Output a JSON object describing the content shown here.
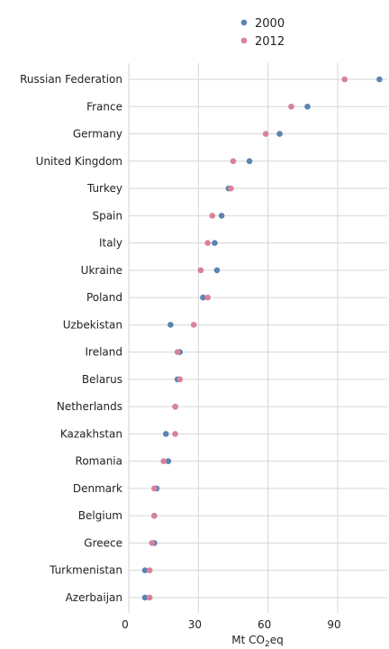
{
  "chart_data": {
    "type": "scatter",
    "subtype": "dot-plot",
    "legend": {
      "placement": "top",
      "entries": [
        "2000",
        "2012"
      ]
    },
    "xlabel": {
      "main": "Mt CO",
      "sub": "2",
      "suffix": "eq"
    },
    "xlim": [
      0,
      112
    ],
    "xticks": [
      0,
      30,
      60,
      90
    ],
    "grid": true,
    "categories": [
      "Russian Federation",
      "France",
      "Germany",
      "United Kingdom",
      "Turkey",
      "Spain",
      "Italy",
      "Ukraine",
      "Poland",
      "Uzbekistan",
      "Ireland",
      "Belarus",
      "Netherlands",
      "Kazakhstan",
      "Romania",
      "Denmark",
      "Belgium",
      "Greece",
      "Turkmenistan",
      "Azerbaijan"
    ],
    "series": [
      {
        "name": "2000",
        "color": "#5b84b1",
        "values": [
          108,
          77,
          65,
          52,
          43,
          40,
          37,
          38,
          32,
          18,
          22,
          21,
          20,
          16,
          17,
          12,
          11,
          11,
          7,
          7
        ]
      },
      {
        "name": "2012",
        "color": "#d9819d",
        "values": [
          93,
          70,
          59,
          45,
          44,
          36,
          34,
          31,
          34,
          28,
          21,
          22,
          20,
          20,
          15,
          11,
          11,
          10,
          9,
          9
        ]
      }
    ]
  }
}
